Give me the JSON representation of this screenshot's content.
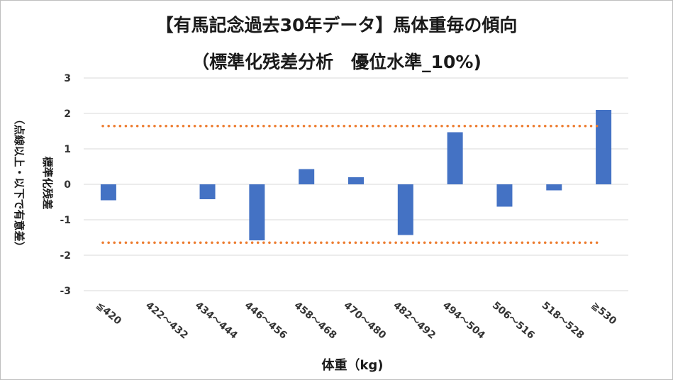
{
  "chart_data": {
    "type": "bar",
    "title": "【有馬記念過去30年データ】馬体重毎の傾向",
    "subtitle": "（標準化残差分析　優位水準_10%)",
    "xlabel": "体重（kg)",
    "ylabel_main": "標準化残差",
    "ylabel_note": "（点線以上・以下で有意差）",
    "categories": [
      "≦420",
      "422～432",
      "434～444",
      "446～456",
      "458～468",
      "470～480",
      "482～492",
      "494～504",
      "506～516",
      "518～528",
      "≧530"
    ],
    "series": [
      {
        "values": [
          -0.45,
          0,
          -0.42,
          -1.58,
          0.43,
          0.2,
          -1.43,
          1.47,
          -0.63,
          -0.17,
          2.1
        ],
        "color": "#4472C4"
      }
    ],
    "threshold_lines": [
      1.645,
      -1.645
    ],
    "threshold_color": "#ED7D31",
    "ylim": [
      -3,
      3
    ],
    "yticks": [
      3,
      2,
      1,
      0,
      -1,
      -2,
      -3
    ],
    "grid": true,
    "legend": "none"
  }
}
